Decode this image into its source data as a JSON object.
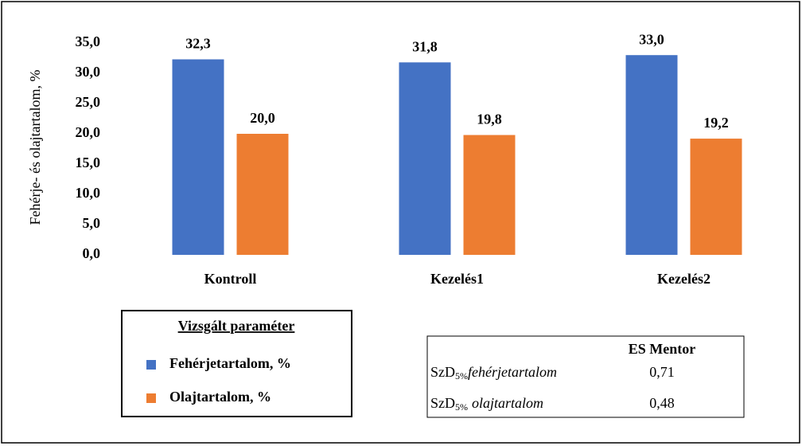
{
  "chart_data": {
    "type": "bar",
    "y_label": "Fehérje- és olajtartalom,  %",
    "categories": [
      "Kontroll",
      "Kezelés1",
      "Kezelés2"
    ],
    "series": [
      {
        "name": "Fehérjetartalom, %",
        "color": "#4472c4",
        "values": [
          32.3,
          31.8,
          33.0
        ],
        "value_labels": [
          "32,3",
          "31,8",
          "33,0"
        ]
      },
      {
        "name": "Olajtartalom, %",
        "color": "#ed7d31",
        "values": [
          20.0,
          19.8,
          19.2
        ],
        "value_labels": [
          "20,0",
          "19,8",
          "19,2"
        ]
      }
    ],
    "ylim": [
      0,
      35
    ],
    "yticks": [
      {
        "value": 0,
        "label": "0,0"
      },
      {
        "value": 5,
        "label": "5,0"
      },
      {
        "value": 10,
        "label": "10,0"
      },
      {
        "value": 15,
        "label": "15,0"
      },
      {
        "value": 20,
        "label": "20,0"
      },
      {
        "value": 25,
        "label": "25,0"
      },
      {
        "value": 30,
        "label": "30,0"
      },
      {
        "value": 35,
        "label": "35,0"
      }
    ],
    "grid": false,
    "legend_title": "Vizsgált paraméter"
  },
  "table": {
    "header": "ES Mentor",
    "rows": [
      {
        "label": "SzD",
        "sub": "5%",
        "param": "fehérjetartalom",
        "value": "0,71"
      },
      {
        "label": "SzD",
        "sub": "5%",
        "param": "olajtartalom",
        "value": "0,48"
      }
    ]
  }
}
